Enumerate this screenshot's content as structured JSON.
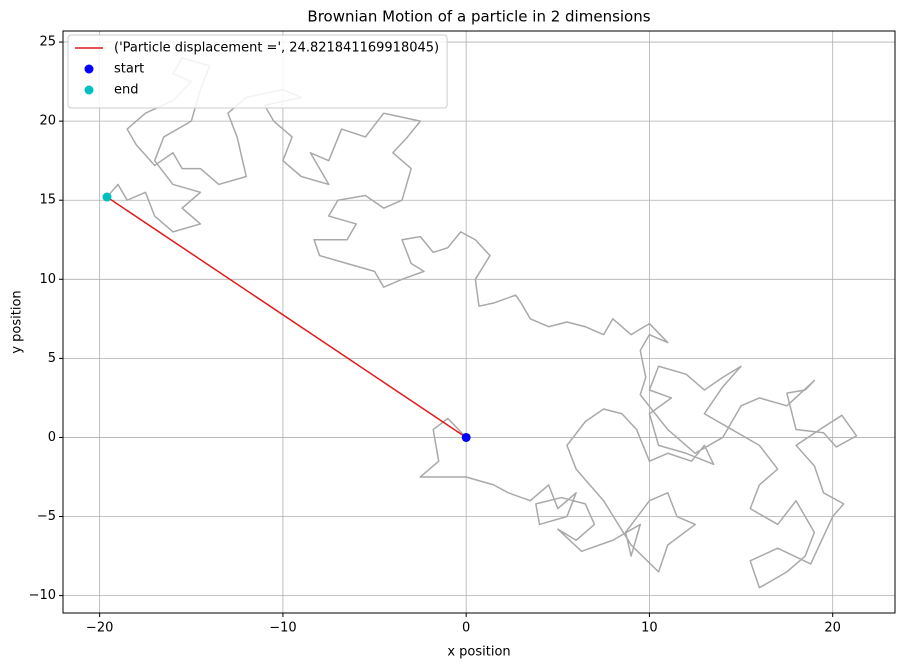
{
  "chart_data": {
    "type": "line",
    "title": "Brownian Motion of a particle in 2 dimensions",
    "xlabel": "x position",
    "ylabel": "y position",
    "xlim": [
      -22,
      23.4
    ],
    "ylim": [
      -11.1,
      25.7
    ],
    "xticks": [
      {
        "value": -20,
        "label": "−20"
      },
      {
        "value": -10,
        "label": "−10"
      },
      0,
      10,
      20
    ],
    "yticks": [
      {
        "value": -10,
        "label": "−10"
      },
      {
        "value": -5,
        "label": "−5"
      },
      0,
      5,
      10,
      15,
      20,
      25
    ],
    "grid": true,
    "legend": "upper left",
    "series": [
      {
        "color": "#a9a9a9",
        "x": [
          0,
          -1,
          -1.8,
          -1.5,
          -2.5,
          -1.5,
          0,
          1.5,
          2.3,
          3.5,
          4.5,
          5,
          6,
          5.5,
          4,
          3.8,
          5.2,
          6.5,
          7,
          6,
          5,
          6.3,
          8,
          9.5,
          9,
          8.7,
          10,
          11,
          11.5,
          12.5,
          11,
          10.5,
          9,
          7.5,
          6,
          5.5,
          6.5,
          7.5,
          8.5,
          9.3,
          10,
          11,
          12.3,
          13,
          13.5,
          12,
          10.5,
          10,
          11.2,
          10,
          10.5,
          12,
          13,
          14,
          15,
          14,
          13,
          14.5,
          16,
          17,
          16,
          15.5,
          17,
          18,
          19,
          18.5,
          17.5,
          16,
          15.5,
          17,
          18.8,
          20,
          20.6,
          19.5,
          19,
          18,
          19.3,
          20.5,
          21.3,
          20.2,
          19.5,
          18,
          17.5,
          18.5,
          19,
          17.5,
          16,
          15,
          14,
          12.5,
          11,
          9.5,
          9.8,
          9.5,
          10,
          11,
          10,
          9,
          8,
          7.5,
          6.5,
          5.5,
          4.5,
          3.5,
          3,
          2.7,
          1.5,
          0.7,
          0.5,
          1.3,
          0.5,
          -0.3,
          -1,
          -1.8,
          -2.5,
          -3.5,
          -3,
          -2.3,
          -3.5,
          -4.5,
          -5,
          -6.5,
          -8,
          -8.3,
          -6.5,
          -6,
          -7.5,
          -7,
          -5.5,
          -4.5,
          -3.5,
          -3,
          -4,
          -3.2,
          -2.5,
          -4.5,
          -5.5,
          -6.8,
          -7.5,
          -8.5,
          -7.5,
          -9,
          -10,
          -9.5,
          -10.5,
          -11,
          -9,
          -10,
          -12,
          -13,
          -12.5,
          -12,
          -13.5,
          -14.5,
          -15.5,
          -16,
          -17,
          -18,
          -18.5,
          -17.5,
          -16,
          -15,
          -16,
          -15.5,
          -14,
          -14.5,
          -15,
          -16.5,
          -17,
          -16,
          -14.5,
          -15.5,
          -14.5,
          -16,
          -17,
          -17.5,
          -18.5,
          -19,
          -19.6
        ],
        "y": [
          0,
          1.2,
          0.5,
          -1.5,
          -2.5,
          -2.5,
          -2.5,
          -3,
          -3.5,
          -4,
          -3,
          -4.5,
          -3.5,
          -5,
          -5.5,
          -4.2,
          -3.8,
          -4.2,
          -5.5,
          -6.5,
          -5.8,
          -7.2,
          -6.5,
          -5.5,
          -7.5,
          -6,
          -4,
          -3.5,
          -5,
          -5.5,
          -6.8,
          -8.5,
          -6.8,
          -4,
          -2,
          -0.5,
          1,
          1.8,
          1.5,
          0.5,
          -1.5,
          -1,
          -1.5,
          -0.5,
          -1.7,
          -1,
          -0.5,
          1.5,
          2.5,
          3,
          4.5,
          4,
          3,
          3.8,
          4.5,
          3.2,
          1.5,
          0.5,
          -0.5,
          -2,
          -3,
          -4.5,
          -5.5,
          -4,
          -6,
          -7.5,
          -8.5,
          -9.5,
          -7.8,
          -7,
          -8,
          -5,
          -4.2,
          -3.5,
          -1.8,
          -0.5,
          0.5,
          1.4,
          0.1,
          -0.6,
          0.3,
          0.5,
          2.8,
          3,
          3.6,
          2,
          2.5,
          2,
          0,
          -1,
          0.5,
          2.7,
          3.8,
          5.5,
          6.5,
          6,
          7.2,
          6.5,
          7.5,
          6.5,
          7,
          7.3,
          7,
          7.5,
          8.5,
          9,
          8.5,
          8.3,
          10,
          11.5,
          12.5,
          13,
          12,
          11.7,
          12.7,
          12.5,
          11,
          10.5,
          10,
          9.5,
          10.5,
          11,
          11.5,
          12.5,
          12.5,
          13.5,
          14,
          15,
          15.3,
          14.5,
          15,
          17,
          18,
          19,
          20,
          20.5,
          19,
          19.5,
          17.5,
          18,
          16,
          16.5,
          17.5,
          19,
          20,
          21,
          21.5,
          22,
          21.5,
          20.5,
          19,
          16.5,
          16,
          17,
          17,
          18,
          17.2,
          18.5,
          19.5,
          20.5,
          21.3,
          22.5,
          23,
          24,
          23.5,
          22,
          20,
          19,
          17.5,
          16,
          15.5,
          14.5,
          13.5,
          13,
          14,
          15.5,
          15,
          16,
          15.2
        ]
      },
      {
        "name": "('Particle displacement =', 24.821841169918045)",
        "color": "#e41a1c",
        "x": [
          0,
          -19.6
        ],
        "y": [
          0,
          15.2
        ]
      },
      {
        "name": "start",
        "color": "#0000ff",
        "marker": "o",
        "x": [
          0
        ],
        "y": [
          0
        ]
      },
      {
        "name": "end",
        "color": "#00bfbf",
        "marker": "o",
        "x": [
          -19.6
        ],
        "y": [
          15.2
        ]
      }
    ]
  }
}
